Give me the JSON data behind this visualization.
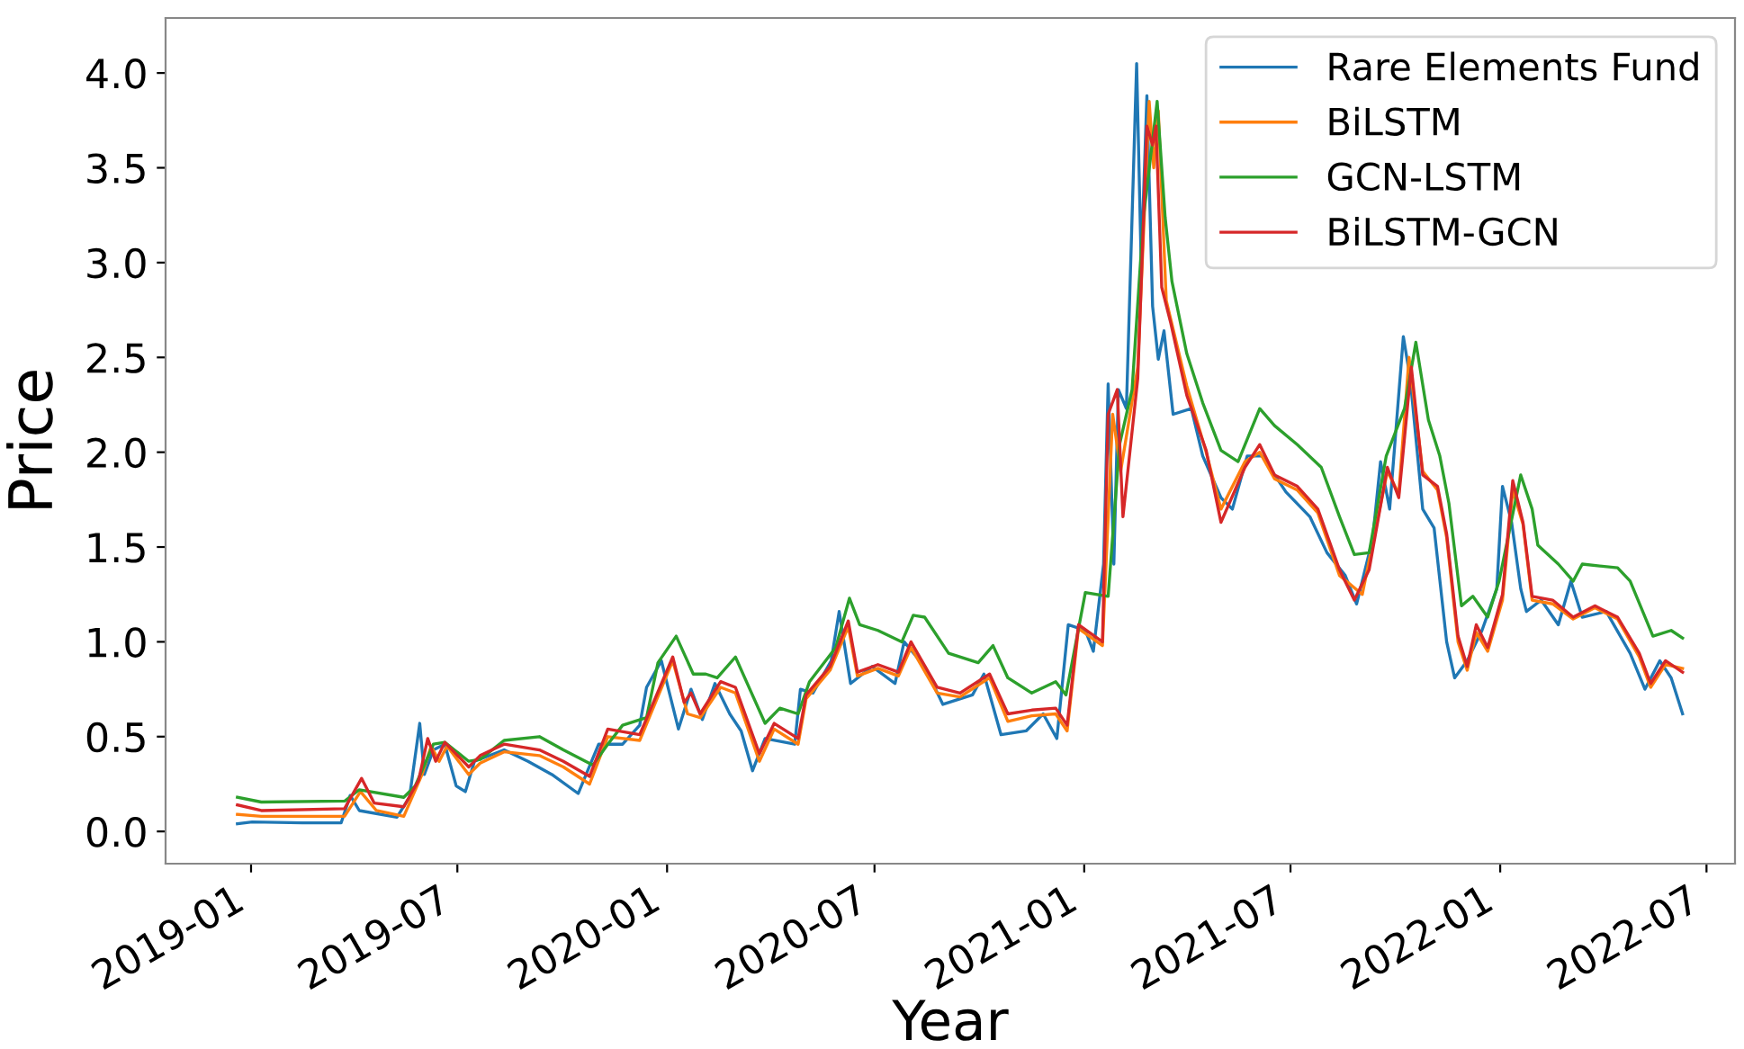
{
  "chart_data": {
    "type": "line",
    "xlabel": "Year",
    "ylabel": "Price",
    "legend": "top right",
    "grid": false,
    "line_style": "solid",
    "marker": "none",
    "xlim": [
      "2018-10-18",
      "2022-07-26"
    ],
    "ylim": [
      -0.17,
      4.29
    ],
    "xticks": [
      {
        "value": "2019-01-01",
        "label": "2019-01"
      },
      {
        "value": "2019-07-01",
        "label": "2019-07"
      },
      {
        "value": "2020-01-01",
        "label": "2020-01"
      },
      {
        "value": "2020-07-01",
        "label": "2020-07"
      },
      {
        "value": "2021-01-01",
        "label": "2021-01"
      },
      {
        "value": "2021-07-01",
        "label": "2021-07"
      },
      {
        "value": "2022-01-01",
        "label": "2022-01"
      },
      {
        "value": "2022-07-01",
        "label": "2022-07"
      }
    ],
    "yticks": [
      {
        "value": 0,
        "label": "0.0"
      },
      {
        "value": 0.5,
        "label": "0.5"
      },
      {
        "value": 1,
        "label": "1.0"
      },
      {
        "value": 1.5,
        "label": "1.5"
      },
      {
        "value": 2,
        "label": "2.0"
      },
      {
        "value": 2.5,
        "label": "2.5"
      },
      {
        "value": 3,
        "label": "3.0"
      },
      {
        "value": 3.5,
        "label": "3.5"
      },
      {
        "value": 4,
        "label": "4.0"
      }
    ],
    "series": [
      {
        "name": "Rare Elements Fund",
        "color": "#1f77b4",
        "x": [
          "2018-12-20",
          "2019-01-02",
          "2019-02-15",
          "2019-03-21",
          "2019-03-29",
          "2019-04-06",
          "2019-05-09",
          "2019-05-20",
          "2019-05-29",
          "2019-06-02",
          "2019-06-10",
          "2019-06-20",
          "2019-06-30",
          "2019-07-08",
          "2019-07-16",
          "2019-08-11",
          "2019-09-01",
          "2019-09-22",
          "2019-10-15",
          "2019-11-02",
          "2019-11-23",
          "2019-12-08",
          "2019-12-14",
          "2019-12-27",
          "2020-01-11",
          "2020-01-22",
          "2020-02-01",
          "2020-02-12",
          "2020-02-25",
          "2020-03-06",
          "2020-03-16",
          "2020-03-27",
          "2020-04-22",
          "2020-04-27",
          "2020-05-08",
          "2020-05-24",
          "2020-05-31",
          "2020-06-10",
          "2020-06-29",
          "2020-07-19",
          "2020-07-27",
          "2020-08-14",
          "2020-08-30",
          "2020-09-25",
          "2020-10-05",
          "2020-10-20",
          "2020-11-11",
          "2020-11-26",
          "2020-12-08",
          "2020-12-18",
          "2021-01-02",
          "2021-01-09",
          "2021-01-18",
          "2021-01-22",
          "2021-01-27",
          "2021-01-31",
          "2021-02-07",
          "2021-02-16",
          "2021-02-20",
          "2021-02-25",
          "2021-03-02",
          "2021-03-07",
          "2021-03-12",
          "2021-03-20",
          "2021-04-05",
          "2021-04-15",
          "2021-05-01",
          "2021-05-11",
          "2021-05-24",
          "2021-06-06",
          "2021-06-27",
          "2021-07-18",
          "2021-08-02",
          "2021-08-18",
          "2021-08-28",
          "2021-09-11",
          "2021-09-18",
          "2021-09-26",
          "2021-10-08",
          "2021-10-14",
          "2021-10-25",
          "2021-11-04",
          "2021-11-15",
          "2021-11-22",
          "2021-12-03",
          "2021-12-16",
          "2021-12-29",
          "2022-01-03",
          "2022-01-11",
          "2022-01-19",
          "2022-01-24",
          "2022-02-06",
          "2022-02-21",
          "2022-03-04",
          "2022-03-14",
          "2022-04-04",
          "2022-04-25",
          "2022-05-08",
          "2022-05-21",
          "2022-05-31",
          "2022-06-10"
        ],
        "values": [
          0.04,
          0.05,
          0.045,
          0.045,
          0.19,
          0.11,
          0.075,
          0.18,
          0.57,
          0.3,
          0.43,
          0.46,
          0.24,
          0.21,
          0.37,
          0.43,
          0.37,
          0.3,
          0.2,
          0.46,
          0.46,
          0.56,
          0.76,
          0.9,
          0.54,
          0.75,
          0.59,
          0.78,
          0.62,
          0.53,
          0.32,
          0.49,
          0.46,
          0.75,
          0.73,
          0.9,
          1.16,
          0.78,
          0.87,
          0.78,
          1.0,
          0.87,
          0.67,
          0.72,
          0.83,
          0.51,
          0.53,
          0.62,
          0.49,
          1.09,
          1.06,
          0.95,
          1.41,
          2.36,
          1.41,
          2.33,
          2.23,
          4.05,
          2.99,
          3.88,
          2.77,
          2.49,
          2.64,
          2.2,
          2.23,
          1.98,
          1.76,
          1.7,
          1.98,
          1.98,
          1.79,
          1.66,
          1.47,
          1.35,
          1.2,
          1.54,
          1.95,
          1.7,
          2.61,
          2.39,
          1.7,
          1.6,
          1.0,
          0.81,
          0.9,
          1.06,
          1.28,
          1.82,
          1.63,
          1.28,
          1.16,
          1.22,
          1.09,
          1.32,
          1.13,
          1.16,
          0.94,
          0.75,
          0.9,
          0.81,
          0.62
        ]
      },
      {
        "name": "BiLSTM",
        "color": "#ff7f0e",
        "x": [
          "2018-12-20",
          "2019-01-10",
          "2019-03-24",
          "2019-04-07",
          "2019-04-21",
          "2019-05-15",
          "2019-05-31",
          "2019-06-08",
          "2019-06-15",
          "2019-06-22",
          "2019-07-11",
          "2019-07-21",
          "2019-08-11",
          "2019-09-11",
          "2019-10-02",
          "2019-10-25",
          "2019-11-10",
          "2019-12-08",
          "2020-01-06",
          "2020-01-19",
          "2020-01-30",
          "2020-02-17",
          "2020-03-01",
          "2020-03-22",
          "2020-04-04",
          "2020-04-25",
          "2020-05-02",
          "2020-05-23",
          "2020-06-08",
          "2020-06-16",
          "2020-07-04",
          "2020-07-22",
          "2020-08-02",
          "2020-08-25",
          "2020-09-14",
          "2020-10-10",
          "2020-10-26",
          "2020-11-16",
          "2020-12-07",
          "2020-12-17",
          "2020-12-27",
          "2021-01-17",
          "2021-01-26",
          "2021-02-02",
          "2021-02-17",
          "2021-02-27",
          "2021-03-03",
          "2021-03-07",
          "2021-03-14",
          "2021-04-01",
          "2021-04-18",
          "2021-05-01",
          "2021-05-22",
          "2021-06-04",
          "2021-06-17",
          "2021-07-07",
          "2021-07-25",
          "2021-08-13",
          "2021-09-02",
          "2021-09-24",
          "2021-10-04",
          "2021-10-13",
          "2021-10-25",
          "2021-11-07",
          "2021-11-15",
          "2021-11-25",
          "2021-12-03",
          "2021-12-11",
          "2021-12-21",
          "2022-01-03",
          "2022-01-12",
          "2022-01-21",
          "2022-01-29",
          "2022-02-16",
          "2022-03-06",
          "2022-03-25",
          "2022-04-14",
          "2022-05-03",
          "2022-05-13",
          "2022-05-26",
          "2022-06-10"
        ],
        "values": [
          0.09,
          0.08,
          0.08,
          0.21,
          0.11,
          0.08,
          0.3,
          0.45,
          0.37,
          0.45,
          0.3,
          0.36,
          0.42,
          0.4,
          0.34,
          0.25,
          0.5,
          0.48,
          0.9,
          0.62,
          0.6,
          0.76,
          0.73,
          0.37,
          0.54,
          0.46,
          0.7,
          0.85,
          1.08,
          0.82,
          0.86,
          0.82,
          0.97,
          0.73,
          0.71,
          0.81,
          0.58,
          0.61,
          0.62,
          0.53,
          1.07,
          0.98,
          2.2,
          1.9,
          2.45,
          3.85,
          3.5,
          3.8,
          2.8,
          2.35,
          2.0,
          1.7,
          1.95,
          2.0,
          1.86,
          1.8,
          1.68,
          1.35,
          1.25,
          1.9,
          1.78,
          2.5,
          1.9,
          1.8,
          1.55,
          1.0,
          0.85,
          1.05,
          0.95,
          1.22,
          1.8,
          1.62,
          1.22,
          1.2,
          1.12,
          1.18,
          1.12,
          0.92,
          0.76,
          0.88,
          0.86
        ]
      },
      {
        "name": "GCN-LSTM",
        "color": "#2ca02c",
        "x": [
          "2018-12-20",
          "2019-01-10",
          "2019-03-24",
          "2019-04-06",
          "2019-05-15",
          "2019-05-25",
          "2019-06-10",
          "2019-06-20",
          "2019-07-11",
          "2019-07-21",
          "2019-08-11",
          "2019-09-11",
          "2019-10-02",
          "2019-10-28",
          "2019-11-10",
          "2019-11-23",
          "2019-12-14",
          "2019-12-24",
          "2020-01-09",
          "2020-01-24",
          "2020-02-04",
          "2020-02-14",
          "2020-03-01",
          "2020-03-27",
          "2020-04-09",
          "2020-04-25",
          "2020-05-05",
          "2020-05-28",
          "2020-06-09",
          "2020-06-18",
          "2020-07-04",
          "2020-07-25",
          "2020-08-04",
          "2020-08-14",
          "2020-09-04",
          "2020-09-30",
          "2020-10-13",
          "2020-10-26",
          "2020-11-16",
          "2020-12-07",
          "2020-12-16",
          "2021-01-02",
          "2021-01-22",
          "2021-02-01",
          "2021-02-12",
          "2021-02-22",
          "2021-03-06",
          "2021-03-13",
          "2021-03-19",
          "2021-04-01",
          "2021-04-15",
          "2021-05-01",
          "2021-05-16",
          "2021-06-04",
          "2021-06-17",
          "2021-07-07",
          "2021-07-28",
          "2021-08-13",
          "2021-08-26",
          "2021-09-08",
          "2021-09-23",
          "2021-10-09",
          "2021-10-19",
          "2021-10-30",
          "2021-11-09",
          "2021-11-17",
          "2021-11-28",
          "2021-12-08",
          "2021-12-21",
          "2021-12-31",
          "2022-01-19",
          "2022-01-29",
          "2022-02-03",
          "2022-02-21",
          "2022-03-06",
          "2022-03-14",
          "2022-04-14",
          "2022-04-25",
          "2022-05-15",
          "2022-05-31",
          "2022-06-10"
        ],
        "values": [
          0.18,
          0.155,
          0.16,
          0.22,
          0.18,
          0.24,
          0.46,
          0.47,
          0.37,
          0.38,
          0.48,
          0.5,
          0.43,
          0.35,
          0.46,
          0.56,
          0.6,
          0.89,
          1.03,
          0.83,
          0.83,
          0.81,
          0.92,
          0.57,
          0.65,
          0.62,
          0.79,
          0.97,
          1.23,
          1.09,
          1.06,
          1.0,
          1.14,
          1.13,
          0.94,
          0.89,
          0.98,
          0.81,
          0.73,
          0.79,
          0.72,
          1.26,
          1.24,
          2.04,
          2.33,
          3.24,
          3.85,
          3.24,
          2.9,
          2.52,
          2.26,
          2.01,
          1.95,
          2.23,
          2.14,
          2.04,
          1.92,
          1.66,
          1.46,
          1.47,
          1.98,
          2.23,
          2.58,
          2.17,
          1.98,
          1.73,
          1.19,
          1.24,
          1.13,
          1.32,
          1.88,
          1.7,
          1.51,
          1.41,
          1.32,
          1.41,
          1.39,
          1.32,
          1.03,
          1.06,
          1.02
        ]
      },
      {
        "name": "BiLSTM-GCN",
        "color": "#d62728",
        "x": [
          "2018-12-20",
          "2019-01-10",
          "2019-03-24",
          "2019-04-08",
          "2019-04-19",
          "2019-05-15",
          "2019-05-28",
          "2019-06-05",
          "2019-06-12",
          "2019-06-20",
          "2019-07-11",
          "2019-07-21",
          "2019-08-11",
          "2019-09-11",
          "2019-10-02",
          "2019-10-25",
          "2019-11-10",
          "2019-12-08",
          "2020-01-06",
          "2020-01-16",
          "2020-01-22",
          "2020-01-30",
          "2020-02-17",
          "2020-03-01",
          "2020-03-22",
          "2020-04-04",
          "2020-04-25",
          "2020-05-02",
          "2020-05-23",
          "2020-06-08",
          "2020-06-16",
          "2020-07-04",
          "2020-07-22",
          "2020-08-02",
          "2020-08-25",
          "2020-09-14",
          "2020-10-10",
          "2020-10-26",
          "2020-11-16",
          "2020-12-07",
          "2020-12-17",
          "2020-12-27",
          "2021-01-17",
          "2021-01-22",
          "2021-01-30",
          "2021-02-04",
          "2021-02-17",
          "2021-02-25",
          "2021-03-02",
          "2021-03-05",
          "2021-03-10",
          "2021-03-18",
          "2021-04-01",
          "2021-04-18",
          "2021-05-01",
          "2021-05-22",
          "2021-06-04",
          "2021-06-17",
          "2021-07-07",
          "2021-07-25",
          "2021-08-13",
          "2021-08-26",
          "2021-09-08",
          "2021-09-24",
          "2021-10-04",
          "2021-10-15",
          "2021-10-25",
          "2021-11-07",
          "2021-11-15",
          "2021-11-25",
          "2021-12-03",
          "2021-12-11",
          "2021-12-21",
          "2022-01-03",
          "2022-01-12",
          "2022-01-21",
          "2022-01-29",
          "2022-02-16",
          "2022-03-06",
          "2022-03-25",
          "2022-04-14",
          "2022-05-03",
          "2022-05-13",
          "2022-05-26",
          "2022-06-10"
        ],
        "values": [
          0.14,
          0.11,
          0.12,
          0.28,
          0.15,
          0.13,
          0.27,
          0.49,
          0.37,
          0.47,
          0.34,
          0.4,
          0.46,
          0.43,
          0.37,
          0.29,
          0.54,
          0.51,
          0.92,
          0.68,
          0.73,
          0.62,
          0.79,
          0.76,
          0.41,
          0.57,
          0.49,
          0.72,
          0.87,
          1.11,
          0.84,
          0.88,
          0.84,
          1.0,
          0.76,
          0.73,
          0.83,
          0.62,
          0.64,
          0.65,
          0.56,
          1.09,
          1.0,
          2.2,
          2.33,
          1.66,
          2.39,
          3.72,
          3.62,
          3.72,
          2.87,
          2.68,
          2.3,
          2.01,
          1.63,
          1.92,
          2.04,
          1.88,
          1.82,
          1.7,
          1.38,
          1.22,
          1.38,
          1.92,
          1.76,
          2.45,
          1.88,
          1.82,
          1.57,
          1.03,
          0.87,
          1.09,
          0.97,
          1.25,
          1.85,
          1.63,
          1.24,
          1.22,
          1.13,
          1.19,
          1.13,
          0.94,
          0.78,
          0.9,
          0.84
        ]
      }
    ]
  }
}
